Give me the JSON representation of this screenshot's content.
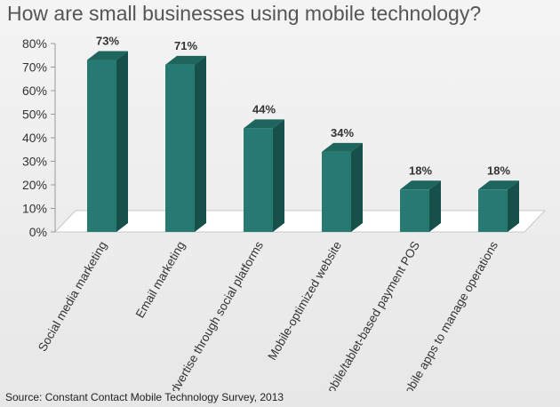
{
  "chart_data": {
    "type": "bar",
    "title": "How are small businesses using mobile technology?",
    "categories": [
      "Social media marketing",
      "Email marketing",
      "Advertise through social platforms",
      "Mobile-optimized website",
      "Mobile/tablet-based payment POS",
      "Use mobile apps to manage operations"
    ],
    "values": [
      73,
      71,
      44,
      34,
      18,
      18
    ],
    "value_labels": [
      "73%",
      "71%",
      "44%",
      "34%",
      "18%",
      "18%"
    ],
    "ylim": [
      0,
      80
    ],
    "yticks": [
      "0%",
      "10%",
      "20%",
      "30%",
      "40%",
      "50%",
      "60%",
      "70%",
      "80%"
    ],
    "grid": false,
    "legend": "none",
    "colors": {
      "bar_front": "#277A72",
      "bar_side": "#174F4A",
      "bar_top": "#1E655E",
      "floor": "#FFFFFF",
      "axis": "#999999"
    }
  },
  "source": "Source: Constant Contact Mobile Technology Survey, 2013"
}
